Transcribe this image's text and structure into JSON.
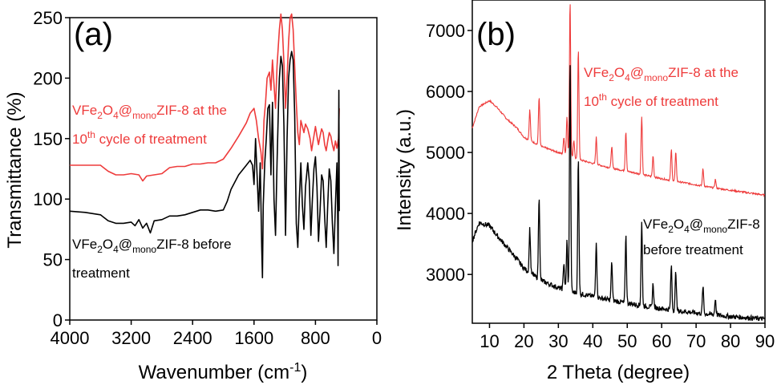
{
  "chart_data": [
    {
      "panel": "(a)",
      "type": "line",
      "xlabel": "Wavenumber (cm",
      "xlabel_sup": "-1",
      "xlabel_end": ")",
      "ylabel": "Transmittance (%)",
      "xlim": [
        4000,
        0
      ],
      "ylim": [
        0,
        250
      ],
      "xticks": [
        "4000",
        "3200",
        "2400",
        "1600",
        "800",
        "0"
      ],
      "yticks": [
        "0",
        "50",
        "100",
        "150",
        "200",
        "250"
      ],
      "colors": {
        "red": "#ee3b3b",
        "black": "#000000"
      },
      "series": [
        {
          "color": "#ee3b3b",
          "label_parts": [
            "VFe",
            "2",
            "O",
            "4",
            "@",
            "mono",
            "ZIF-8 at the"
          ],
          "label_line2": [
            "10",
            "th",
            " cycle of treatment"
          ],
          "points": [
            [
              4000,
              128
            ],
            [
              3800,
              128
            ],
            [
              3600,
              128
            ],
            [
              3500,
              123
            ],
            [
              3400,
              120
            ],
            [
              3300,
              120
            ],
            [
              3200,
              121
            ],
            [
              3100,
              120
            ],
            [
              3050,
              115
            ],
            [
              3000,
              119
            ],
            [
              2900,
              120
            ],
            [
              2800,
              121
            ],
            [
              2700,
              126
            ],
            [
              2600,
              127
            ],
            [
              2500,
              127
            ],
            [
              2400,
              129
            ],
            [
              2300,
              129
            ],
            [
              2200,
              130
            ],
            [
              2100,
              130
            ],
            [
              2000,
              133
            ],
            [
              1900,
              142
            ],
            [
              1800,
              152
            ],
            [
              1700,
              163
            ],
            [
              1650,
              171
            ],
            [
              1600,
              175
            ],
            [
              1570,
              165
            ],
            [
              1540,
              150
            ],
            [
              1510,
              139
            ],
            [
              1490,
              125
            ],
            [
              1470,
              165
            ],
            [
              1450,
              180
            ],
            [
              1430,
              200
            ],
            [
              1400,
              205
            ],
            [
              1380,
              190
            ],
            [
              1360,
              215
            ],
            [
              1340,
              195
            ],
            [
              1320,
              175
            ],
            [
              1300,
              210
            ],
            [
              1270,
              240
            ],
            [
              1250,
              253
            ],
            [
              1230,
              240
            ],
            [
              1210,
              212
            ],
            [
              1190,
              175
            ],
            [
              1170,
              200
            ],
            [
              1150,
              230
            ],
            [
              1130,
              250
            ],
            [
              1110,
              253
            ],
            [
              1090,
              240
            ],
            [
              1070,
              210
            ],
            [
              1050,
              180
            ],
            [
              1030,
              155
            ],
            [
              1010,
              145
            ],
            [
              990,
              165
            ],
            [
              970,
              160
            ],
            [
              950,
              155
            ],
            [
              930,
              162
            ],
            [
              900,
              158
            ],
            [
              870,
              150
            ],
            [
              850,
              140
            ],
            [
              830,
              148
            ],
            [
              800,
              160
            ],
            [
              780,
              152
            ],
            [
              760,
              145
            ],
            [
              740,
              152
            ],
            [
              720,
              158
            ],
            [
              700,
              155
            ],
            [
              680,
              145
            ],
            [
              660,
              140
            ],
            [
              640,
              148
            ],
            [
              620,
              155
            ],
            [
              600,
              152
            ],
            [
              580,
              145
            ],
            [
              560,
              140
            ],
            [
              540,
              148
            ],
            [
              520,
              142
            ],
            [
              500,
              150
            ],
            [
              490,
              175
            ]
          ]
        },
        {
          "color": "#000000",
          "label_parts": [
            "VFe",
            "2",
            "O",
            "4",
            "@",
            "mono",
            "ZIF-8 before"
          ],
          "label_line2": [
            "treatment"
          ],
          "points": [
            [
              4000,
              90
            ],
            [
              3800,
              89
            ],
            [
              3700,
              88
            ],
            [
              3600,
              87
            ],
            [
              3500,
              82
            ],
            [
              3400,
              80
            ],
            [
              3300,
              80
            ],
            [
              3200,
              81
            ],
            [
              3150,
              78
            ],
            [
              3100,
              83
            ],
            [
              3050,
              76
            ],
            [
              3000,
              80
            ],
            [
              2950,
              72
            ],
            [
              2900,
              82
            ],
            [
              2800,
              83
            ],
            [
              2700,
              86
            ],
            [
              2600,
              86
            ],
            [
              2500,
              87
            ],
            [
              2400,
              89
            ],
            [
              2300,
              91
            ],
            [
              2200,
              91
            ],
            [
              2100,
              90
            ],
            [
              2000,
              91
            ],
            [
              1950,
              98
            ],
            [
              1900,
              108
            ],
            [
              1800,
              120
            ],
            [
              1700,
              128
            ],
            [
              1650,
              132
            ],
            [
              1620,
              128
            ],
            [
              1600,
              112
            ],
            [
              1580,
              150
            ],
            [
              1560,
              120
            ],
            [
              1540,
              90
            ],
            [
              1520,
              130
            ],
            [
              1500,
              60
            ],
            [
              1490,
              35
            ],
            [
              1480,
              95
            ],
            [
              1460,
              130
            ],
            [
              1440,
              150
            ],
            [
              1420,
              175
            ],
            [
              1400,
              178
            ],
            [
              1380,
              120
            ],
            [
              1360,
              180
            ],
            [
              1340,
              100
            ],
            [
              1320,
              70
            ],
            [
              1300,
              130
            ],
            [
              1280,
              180
            ],
            [
              1270,
              200
            ],
            [
              1250,
              218
            ],
            [
              1230,
              210
            ],
            [
              1210,
              160
            ],
            [
              1190,
              70
            ],
            [
              1170,
              150
            ],
            [
              1150,
              200
            ],
            [
              1130,
              215
            ],
            [
              1110,
              222
            ],
            [
              1090,
              215
            ],
            [
              1070,
              170
            ],
            [
              1050,
              80
            ],
            [
              1030,
              60
            ],
            [
              1010,
              100
            ],
            [
              990,
              130
            ],
            [
              970,
              95
            ],
            [
              950,
              75
            ],
            [
              930,
              110
            ],
            [
              900,
              130
            ],
            [
              880,
              115
            ],
            [
              860,
              70
            ],
            [
              840,
              100
            ],
            [
              820,
              125
            ],
            [
              800,
              135
            ],
            [
              780,
              110
            ],
            [
              760,
              65
            ],
            [
              740,
              90
            ],
            [
              720,
              120
            ],
            [
              700,
              115
            ],
            [
              680,
              85
            ],
            [
              660,
              60
            ],
            [
              640,
              95
            ],
            [
              620,
              125
            ],
            [
              600,
              115
            ],
            [
              580,
              80
            ],
            [
              560,
              55
            ],
            [
              540,
              95
            ],
            [
              520,
              130
            ],
            [
              510,
              80
            ],
            [
              505,
              45
            ],
            [
              500,
              120
            ],
            [
              495,
              190
            ],
            [
              490,
              90
            ]
          ]
        }
      ]
    },
    {
      "panel": "(b)",
      "type": "line",
      "xlabel": "2 Theta (degree)",
      "ylabel": "Intensity (a.u.)",
      "xlim": [
        5,
        90
      ],
      "ylim": [
        2200,
        7500
      ],
      "xticks": [
        "10",
        "20",
        "30",
        "40",
        "50",
        "60",
        "70",
        "80",
        "90"
      ],
      "yticks": [
        "3000",
        "4000",
        "5000",
        "6000",
        "7000"
      ],
      "series": [
        {
          "color": "#ee3b3b",
          "label_parts": [
            "VFe",
            "2",
            "O",
            "4",
            "@",
            "mono",
            "ZIF-8 at the"
          ],
          "label_line2": [
            "10",
            "th",
            " cycle of treatment"
          ],
          "baseline": [
            [
              5,
              5400
            ],
            [
              7,
              5750
            ],
            [
              10,
              5850
            ],
            [
              12,
              5750
            ],
            [
              15,
              5550
            ],
            [
              18,
              5400
            ],
            [
              20,
              5250
            ],
            [
              25,
              5100
            ],
            [
              30,
              5000
            ],
            [
              35,
              4900
            ],
            [
              40,
              4820
            ],
            [
              45,
              4750
            ],
            [
              50,
              4690
            ],
            [
              55,
              4630
            ],
            [
              60,
              4570
            ],
            [
              65,
              4520
            ],
            [
              70,
              4470
            ],
            [
              75,
              4420
            ],
            [
              80,
              4380
            ],
            [
              85,
              4340
            ],
            [
              90,
              4300
            ]
          ],
          "peaks": [
            [
              21.7,
              5700
            ],
            [
              24.4,
              5920
            ],
            [
              31.6,
              5250
            ],
            [
              32.5,
              5600
            ],
            [
              33.4,
              7500
            ],
            [
              34.5,
              5200
            ],
            [
              35.8,
              6700
            ],
            [
              41.0,
              5250
            ],
            [
              45.5,
              5100
            ],
            [
              49.6,
              5350
            ],
            [
              54.2,
              5600
            ],
            [
              57.5,
              4950
            ],
            [
              62.8,
              5050
            ],
            [
              64.1,
              5000
            ],
            [
              72.0,
              4730
            ],
            [
              75.6,
              4560
            ]
          ]
        },
        {
          "color": "#000000",
          "label_parts": [
            "VFe",
            "2",
            "O",
            "4",
            "@",
            "mono",
            "ZIF-8"
          ],
          "label_line2": [
            "before treatment"
          ],
          "baseline": [
            [
              5,
              3550
            ],
            [
              7,
              3850
            ],
            [
              10,
              3800
            ],
            [
              12,
              3650
            ],
            [
              15,
              3450
            ],
            [
              18,
              3250
            ],
            [
              20,
              3100
            ],
            [
              25,
              2900
            ],
            [
              30,
              2780
            ],
            [
              35,
              2700
            ],
            [
              40,
              2640
            ],
            [
              45,
              2580
            ],
            [
              50,
              2530
            ],
            [
              55,
              2480
            ],
            [
              60,
              2440
            ],
            [
              65,
              2400
            ],
            [
              70,
              2370
            ],
            [
              75,
              2340
            ],
            [
              80,
              2310
            ],
            [
              85,
              2290
            ],
            [
              90,
              2270
            ]
          ],
          "peaks": [
            [
              21.7,
              3750
            ],
            [
              24.4,
              4300
            ],
            [
              31.6,
              3200
            ],
            [
              32.5,
              3550
            ],
            [
              33.4,
              6500
            ],
            [
              35.8,
              4900
            ],
            [
              41.0,
              3550
            ],
            [
              45.5,
              3200
            ],
            [
              49.6,
              3650
            ],
            [
              54.2,
              3850
            ],
            [
              57.5,
              2850
            ],
            [
              62.8,
              3150
            ],
            [
              64.1,
              3050
            ],
            [
              72.0,
              2800
            ],
            [
              75.6,
              2600
            ]
          ]
        }
      ]
    }
  ]
}
